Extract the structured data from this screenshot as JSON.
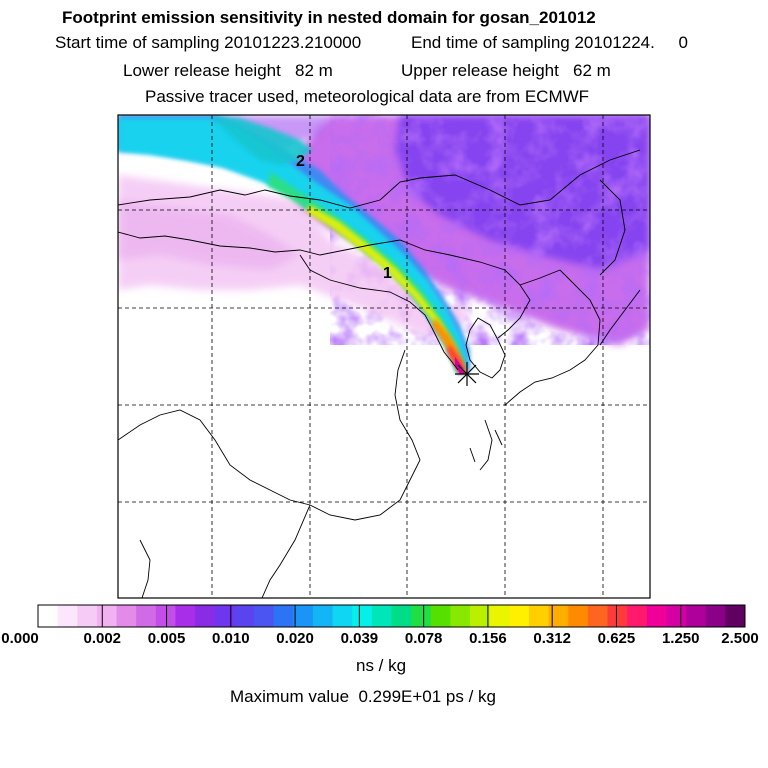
{
  "header": {
    "title": "Footprint emission sensitivity in nested domain for gosan_201012",
    "line2_start": "Start time of sampling 20101223.210000",
    "line2_end": "End time of sampling 20101224.     0",
    "line3_lower": "Lower release height   82 m",
    "line3_upper": "Upper release height   62 m",
    "line4": "Passive tracer used, meteorological data are from ECMWF"
  },
  "map": {
    "plume_label_1": "1",
    "plume_label_2": "2",
    "release_marker": "star-marker"
  },
  "colorbar": {
    "colors": [
      "#ffffff",
      "#fbe6fb",
      "#f6ccf6",
      "#f0b2f0",
      "#e28be8",
      "#d06ae6",
      "#c34de8",
      "#a82ee9",
      "#8a2be6",
      "#6e36ee",
      "#5a44f0",
      "#4a55f2",
      "#2d73f5",
      "#1a95f7",
      "#12b5f5",
      "#0fd6f2",
      "#05f0e8",
      "#00e6b8",
      "#00dd88",
      "#22dd44",
      "#55e000",
      "#88e800",
      "#bbef00",
      "#eaf500",
      "#fff000",
      "#ffd000",
      "#ffae00",
      "#ff8a00",
      "#ff6420",
      "#ff3a3a",
      "#ff1a6e",
      "#f00098",
      "#d400a4",
      "#b0009c",
      "#8a0088",
      "#600060"
    ],
    "labels": [
      "0.000",
      "0.002",
      "0.005",
      "0.010",
      "0.020",
      "0.039",
      "0.078",
      "0.156",
      "0.312",
      "0.625",
      "1.250",
      "2.500"
    ],
    "unit": "ns / kg",
    "max_text": "Maximum value  0.299E+01 ps / kg"
  }
}
